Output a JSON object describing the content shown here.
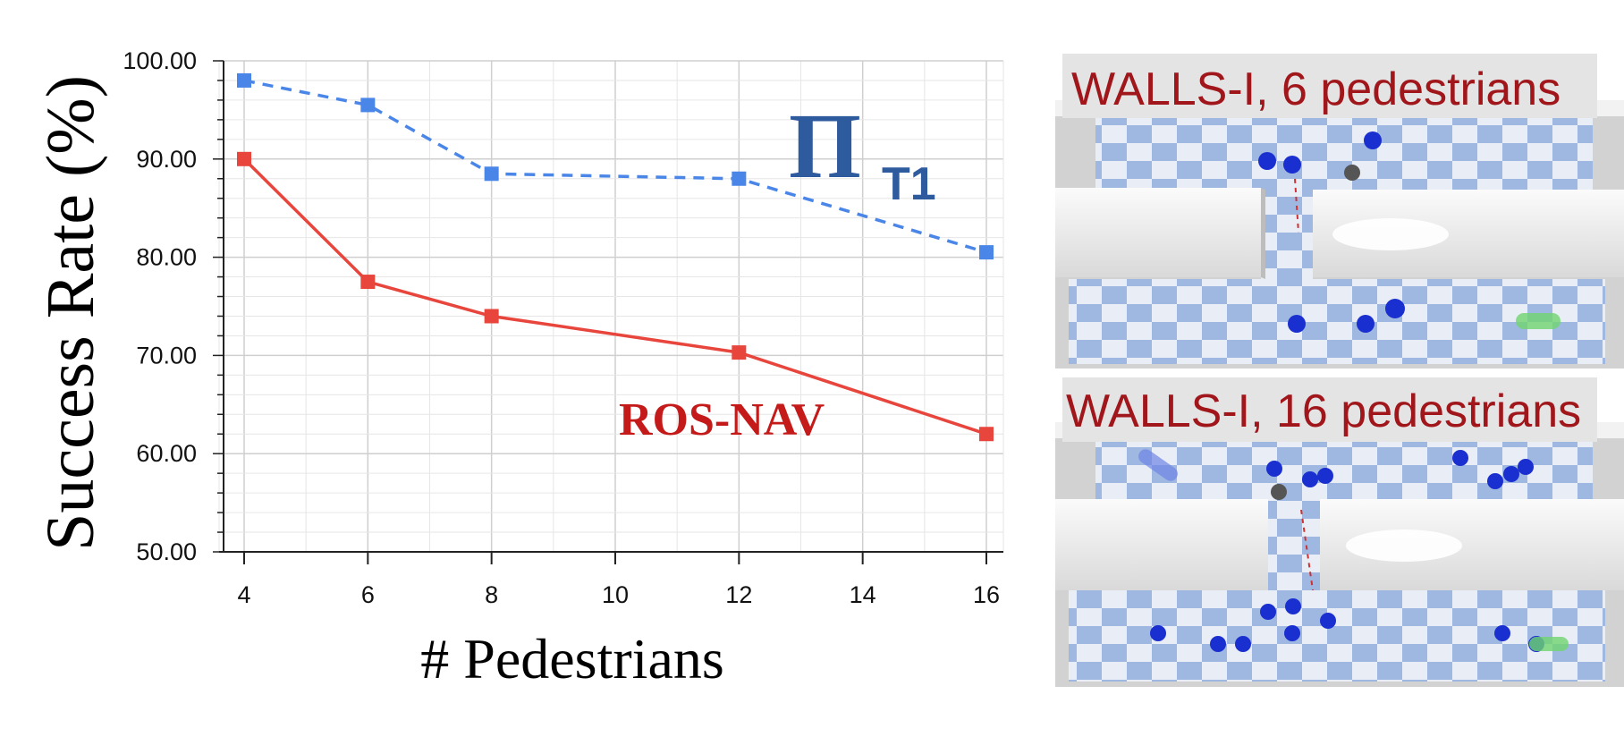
{
  "chart_data": {
    "type": "line",
    "title": "",
    "xlabel": "# Pedestrians",
    "ylabel": "Success Rate (%)",
    "xlim": [
      4,
      16
    ],
    "ylim": [
      50,
      100
    ],
    "x_ticks": [
      "4",
      "6",
      "8",
      "10",
      "12",
      "14",
      "16"
    ],
    "y_ticks": [
      "50.00",
      "60.00",
      "70.00",
      "80.00",
      "90.00",
      "100.00"
    ],
    "grid": true,
    "series": [
      {
        "name": "T1",
        "label_main": "Π",
        "label_sub": "T1",
        "style": "dashed",
        "color": "#4a86e8",
        "x": [
          4,
          6,
          8,
          12,
          16
        ],
        "values": [
          98.0,
          95.5,
          88.5,
          88.0,
          80.5
        ]
      },
      {
        "name": "ROS-NAV",
        "style": "solid",
        "color": "#e8453c",
        "x": [
          4,
          6,
          8,
          12,
          16
        ],
        "values": [
          90.0,
          77.5,
          74.0,
          70.3,
          62.0
        ]
      }
    ]
  },
  "panels": [
    {
      "title": "WALLS-I, 6 pedestrians"
    },
    {
      "title": "WALLS-I, 16 pedestrians"
    }
  ]
}
